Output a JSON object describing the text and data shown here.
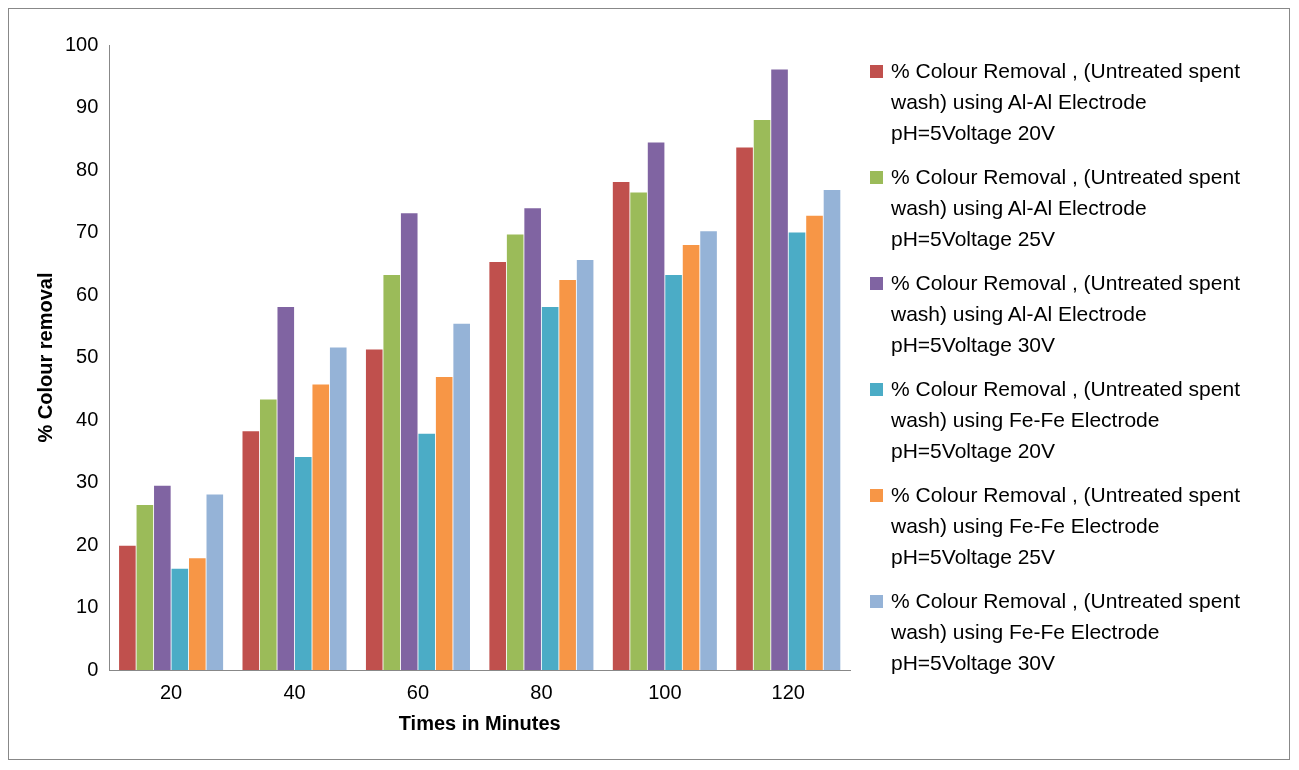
{
  "chart_data": {
    "type": "bar",
    "xlabel": "Times in Minutes",
    "ylabel": "% Colour removal",
    "categories": [
      "20",
      "40",
      "60",
      "80",
      "100",
      "120"
    ],
    "series": [
      {
        "name": "% Colour Removal , (Untreated spent wash) using Al-Al Electrode pH=5Voltage 20V",
        "color": "#c0504d",
        "values": [
          19.9,
          38.2,
          51.3,
          65.3,
          78.1,
          83.6
        ]
      },
      {
        "name": "% Colour Removal , (Untreated spent wash) using Al-Al Electrode pH=5Voltage 25V",
        "color": "#9bbb59",
        "values": [
          26.4,
          43.3,
          63.2,
          69.7,
          76.4,
          88.0
        ]
      },
      {
        "name": "% Colour Removal , (Untreated spent wash) using Al-Al Electrode pH=5Voltage 30V",
        "color": "#8064a2",
        "values": [
          29.5,
          58.1,
          73.1,
          73.9,
          84.4,
          96.1
        ]
      },
      {
        "name": "% Colour Removal , (Untreated spent wash) using Fe-Fe Electrode pH=5Voltage 20V",
        "color": "#4bacc6",
        "values": [
          16.2,
          34.1,
          37.8,
          58.1,
          63.2,
          70.0
        ]
      },
      {
        "name": "% Colour Removal , (Untreated spent wash) using Fe-Fe Electrode pH=5Voltage 25V",
        "color": "#f79646",
        "values": [
          17.9,
          45.7,
          46.9,
          62.4,
          68.0,
          72.7
        ]
      },
      {
        "name": "% Colour Removal , (Untreated spent wash) using Fe-Fe Electrode pH=5Voltage 30V",
        "color": "#95b3d7",
        "values": [
          28.1,
          51.6,
          55.4,
          65.6,
          70.2,
          76.8
        ]
      }
    ],
    "ylim": [
      0,
      100
    ],
    "yticks": [
      0,
      10,
      20,
      30,
      40,
      50,
      60,
      70,
      80,
      90,
      100
    ],
    "grid": false,
    "legend": "right"
  }
}
